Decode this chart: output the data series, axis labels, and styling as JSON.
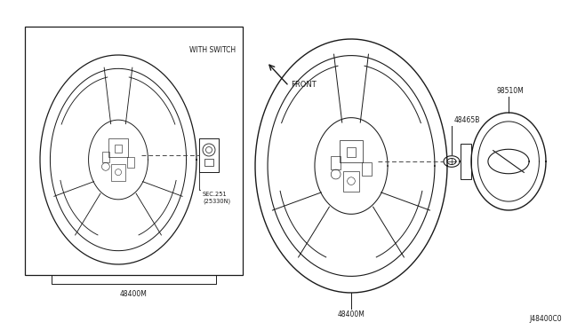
{
  "bg_color": "#ffffff",
  "line_color": "#1a1a1a",
  "dashed_color": "#444444",
  "diagram_id": "J48400C0",
  "labels": {
    "front": "FRONT",
    "with_switch": "WITH SWITCH",
    "part1_left": "48400M",
    "part1_right": "48400M",
    "part3": "48465B",
    "part4": "98510M",
    "sec": "SEC.251\n(25330N)"
  },
  "figsize": [
    6.4,
    3.72
  ],
  "dpi": 100
}
